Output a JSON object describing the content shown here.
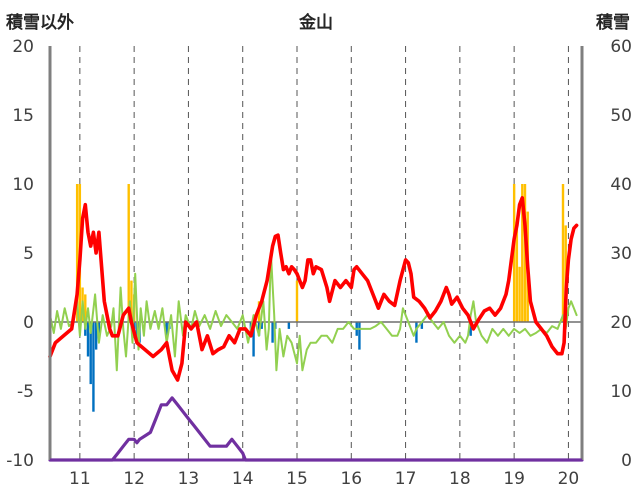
{
  "chart_data": {
    "type": "bar+line",
    "title": "金山",
    "left_axis_label": "積雪以外",
    "right_axis_label": "積雪",
    "x_ticks": [
      "11",
      "12",
      "13",
      "14",
      "15",
      "16",
      "17",
      "18",
      "19",
      "20"
    ],
    "x_tick_positions": [
      11,
      12,
      13,
      14,
      15,
      16,
      17,
      18,
      19,
      20
    ],
    "xlim": [
      10.45,
      20.25
    ],
    "left_ylim": [
      -10,
      20
    ],
    "left_yticks": [
      20,
      15,
      10,
      5,
      0,
      -5,
      -10
    ],
    "right_ylim": [
      0,
      60
    ],
    "right_yticks": [
      60,
      50,
      40,
      30,
      20,
      10,
      0
    ],
    "grid": "vertical dashed at ticks",
    "colors": {
      "red": "#ff0000",
      "green": "#92d050",
      "purple": "#7030a0",
      "orange": "#ffc000",
      "blue": "#0070c0"
    },
    "series": [
      {
        "name": "",
        "kind": "line",
        "color": "#ff0000",
        "axis": "left",
        "points": [
          [
            10.45,
            -2.5
          ],
          [
            10.55,
            -1.5
          ],
          [
            10.7,
            -1.0
          ],
          [
            10.85,
            -0.5
          ],
          [
            10.95,
            2.0
          ],
          [
            11.0,
            4.5
          ],
          [
            11.05,
            7.5
          ],
          [
            11.1,
            8.5
          ],
          [
            11.15,
            6.5
          ],
          [
            11.2,
            5.5
          ],
          [
            11.25,
            6.5
          ],
          [
            11.3,
            5.0
          ],
          [
            11.35,
            6.5
          ],
          [
            11.4,
            4.0
          ],
          [
            11.45,
            1.5
          ],
          [
            11.5,
            0.5
          ],
          [
            11.55,
            -0.5
          ],
          [
            11.6,
            -1.0
          ],
          [
            11.7,
            -1.0
          ],
          [
            11.8,
            0.5
          ],
          [
            11.9,
            1.0
          ],
          [
            11.95,
            0.0
          ],
          [
            12.05,
            -1.5
          ],
          [
            12.2,
            -2.0
          ],
          [
            12.35,
            -2.5
          ],
          [
            12.5,
            -2.0
          ],
          [
            12.6,
            -1.5
          ],
          [
            12.7,
            -3.5
          ],
          [
            12.8,
            -4.2
          ],
          [
            12.88,
            -3.0
          ],
          [
            12.95,
            0.0
          ],
          [
            13.05,
            -0.5
          ],
          [
            13.15,
            0.0
          ],
          [
            13.25,
            -2.0
          ],
          [
            13.35,
            -1.0
          ],
          [
            13.45,
            -2.3
          ],
          [
            13.55,
            -2.0
          ],
          [
            13.65,
            -1.8
          ],
          [
            13.75,
            -1.0
          ],
          [
            13.85,
            -1.5
          ],
          [
            13.95,
            -0.5
          ],
          [
            14.05,
            -0.5
          ],
          [
            14.15,
            -1.0
          ],
          [
            14.25,
            0.5
          ],
          [
            14.35,
            1.5
          ],
          [
            14.45,
            3.0
          ],
          [
            14.55,
            5.5
          ],
          [
            14.6,
            6.2
          ],
          [
            14.65,
            6.3
          ],
          [
            14.7,
            5.0
          ],
          [
            14.75,
            3.8
          ],
          [
            14.8,
            4.0
          ],
          [
            14.85,
            3.5
          ],
          [
            14.9,
            4.0
          ],
          [
            14.95,
            3.8
          ],
          [
            15.0,
            3.5
          ],
          [
            15.1,
            2.5
          ],
          [
            15.15,
            3.0
          ],
          [
            15.2,
            4.5
          ],
          [
            15.25,
            4.5
          ],
          [
            15.3,
            3.5
          ],
          [
            15.35,
            4.0
          ],
          [
            15.45,
            3.8
          ],
          [
            15.55,
            2.5
          ],
          [
            15.6,
            1.5
          ],
          [
            15.7,
            3.0
          ],
          [
            15.8,
            2.5
          ],
          [
            15.9,
            3.0
          ],
          [
            16.0,
            2.5
          ],
          [
            16.05,
            3.8
          ],
          [
            16.1,
            4.0
          ],
          [
            16.2,
            3.5
          ],
          [
            16.3,
            3.0
          ],
          [
            16.4,
            2.0
          ],
          [
            16.5,
            1.0
          ],
          [
            16.6,
            2.0
          ],
          [
            16.7,
            1.5
          ],
          [
            16.8,
            1.2
          ],
          [
            16.9,
            3.0
          ],
          [
            17.0,
            4.5
          ],
          [
            17.05,
            4.3
          ],
          [
            17.1,
            3.5
          ],
          [
            17.15,
            1.8
          ],
          [
            17.25,
            1.5
          ],
          [
            17.35,
            1.0
          ],
          [
            17.45,
            0.3
          ],
          [
            17.55,
            0.8
          ],
          [
            17.65,
            1.5
          ],
          [
            17.75,
            2.5
          ],
          [
            17.8,
            2.0
          ],
          [
            17.85,
            1.3
          ],
          [
            17.95,
            1.8
          ],
          [
            18.05,
            1.0
          ],
          [
            18.15,
            0.5
          ],
          [
            18.25,
            -0.5
          ],
          [
            18.35,
            0.2
          ],
          [
            18.45,
            0.8
          ],
          [
            18.55,
            1.0
          ],
          [
            18.65,
            0.5
          ],
          [
            18.75,
            1.0
          ],
          [
            18.85,
            2.0
          ],
          [
            18.9,
            3.0
          ],
          [
            18.95,
            4.5
          ],
          [
            19.0,
            6.0
          ],
          [
            19.05,
            7.0
          ],
          [
            19.1,
            8.5
          ],
          [
            19.15,
            9.0
          ],
          [
            19.2,
            7.0
          ],
          [
            19.25,
            4.0
          ],
          [
            19.3,
            1.5
          ],
          [
            19.4,
            0.0
          ],
          [
            19.5,
            -0.5
          ],
          [
            19.6,
            -1.0
          ],
          [
            19.7,
            -1.8
          ],
          [
            19.8,
            -2.3
          ],
          [
            19.88,
            -2.3
          ],
          [
            19.92,
            -1.5
          ],
          [
            19.96,
            2.5
          ],
          [
            20.0,
            4.5
          ],
          [
            20.05,
            6.0
          ],
          [
            20.1,
            6.8
          ],
          [
            20.15,
            7.0
          ]
        ]
      },
      {
        "name": "",
        "kind": "line",
        "color": "#92d050",
        "axis": "left",
        "points": [
          [
            10.45,
            0.5
          ],
          [
            10.52,
            -0.8
          ],
          [
            10.58,
            0.8
          ],
          [
            10.65,
            -0.5
          ],
          [
            10.72,
            1.0
          ],
          [
            10.8,
            -0.3
          ],
          [
            10.88,
            0.0
          ],
          [
            10.95,
            1.5
          ],
          [
            11.0,
            -1.0
          ],
          [
            11.05,
            1.5
          ],
          [
            11.1,
            -0.5
          ],
          [
            11.15,
            1.0
          ],
          [
            11.2,
            -0.8
          ],
          [
            11.28,
            2.0
          ],
          [
            11.35,
            -1.5
          ],
          [
            11.42,
            0.5
          ],
          [
            11.5,
            -1.0
          ],
          [
            11.58,
            -0.3
          ],
          [
            11.62,
            1.0
          ],
          [
            11.68,
            -3.5
          ],
          [
            11.75,
            2.5
          ],
          [
            11.8,
            -0.5
          ],
          [
            11.85,
            -2.5
          ],
          [
            11.92,
            1.5
          ],
          [
            11.97,
            -1.5
          ],
          [
            12.02,
            3.5
          ],
          [
            12.08,
            -2.0
          ],
          [
            12.12,
            1.0
          ],
          [
            12.18,
            -1.0
          ],
          [
            12.23,
            1.5
          ],
          [
            12.3,
            -0.5
          ],
          [
            12.38,
            0.8
          ],
          [
            12.45,
            -0.5
          ],
          [
            12.52,
            1.0
          ],
          [
            12.6,
            -1.5
          ],
          [
            12.68,
            0.5
          ],
          [
            12.75,
            -2.5
          ],
          [
            12.82,
            1.5
          ],
          [
            12.9,
            -1.0
          ],
          [
            12.95,
            0.5
          ],
          [
            13.05,
            -0.5
          ],
          [
            13.12,
            0.8
          ],
          [
            13.2,
            -0.3
          ],
          [
            13.3,
            0.5
          ],
          [
            13.4,
            -0.5
          ],
          [
            13.5,
            0.8
          ],
          [
            13.6,
            -0.3
          ],
          [
            13.7,
            0.5
          ],
          [
            13.8,
            0.0
          ],
          [
            13.9,
            -0.5
          ],
          [
            14.0,
            0.5
          ],
          [
            14.1,
            -1.5
          ],
          [
            14.2,
            0.5
          ],
          [
            14.3,
            -1.0
          ],
          [
            14.38,
            1.5
          ],
          [
            14.44,
            -2.0
          ],
          [
            14.48,
            -0.5
          ],
          [
            14.52,
            5.0
          ],
          [
            14.58,
            0.5
          ],
          [
            14.62,
            -3.5
          ],
          [
            14.68,
            -0.5
          ],
          [
            14.75,
            -2.5
          ],
          [
            14.82,
            -1.0
          ],
          [
            14.9,
            -1.5
          ],
          [
            15.0,
            -3.0
          ],
          [
            15.05,
            -1.0
          ],
          [
            15.1,
            -3.5
          ],
          [
            15.18,
            -2.0
          ],
          [
            15.25,
            -1.5
          ],
          [
            15.35,
            -1.5
          ],
          [
            15.45,
            -1.0
          ],
          [
            15.55,
            -1.0
          ],
          [
            15.65,
            -1.5
          ],
          [
            15.75,
            -0.5
          ],
          [
            15.85,
            -0.5
          ],
          [
            15.95,
            0.0
          ],
          [
            16.05,
            -0.5
          ],
          [
            16.15,
            -0.5
          ],
          [
            16.25,
            -0.5
          ],
          [
            16.35,
            -0.5
          ],
          [
            16.45,
            -0.3
          ],
          [
            16.55,
            0.0
          ],
          [
            16.65,
            -0.5
          ],
          [
            16.75,
            -1.0
          ],
          [
            16.85,
            -1.0
          ],
          [
            16.9,
            -0.5
          ],
          [
            16.95,
            1.0
          ],
          [
            17.0,
            0.5
          ],
          [
            17.05,
            0.0
          ],
          [
            17.1,
            -0.5
          ],
          [
            17.15,
            -1.0
          ],
          [
            17.2,
            -0.5
          ],
          [
            17.3,
            0.0
          ],
          [
            17.4,
            0.5
          ],
          [
            17.5,
            0.0
          ],
          [
            17.6,
            -0.5
          ],
          [
            17.7,
            0.0
          ],
          [
            17.8,
            -1.0
          ],
          [
            17.9,
            -1.5
          ],
          [
            18.0,
            -1.0
          ],
          [
            18.1,
            -1.5
          ],
          [
            18.15,
            -1.0
          ],
          [
            18.2,
            0.5
          ],
          [
            18.25,
            1.5
          ],
          [
            18.3,
            0.0
          ],
          [
            18.4,
            -1.0
          ],
          [
            18.5,
            -1.5
          ],
          [
            18.6,
            -0.5
          ],
          [
            18.7,
            -1.0
          ],
          [
            18.8,
            -0.5
          ],
          [
            18.9,
            -1.0
          ],
          [
            19.0,
            -0.5
          ],
          [
            19.1,
            -0.8
          ],
          [
            19.2,
            -0.5
          ],
          [
            19.3,
            -1.0
          ],
          [
            19.4,
            -0.8
          ],
          [
            19.5,
            -0.5
          ],
          [
            19.6,
            -0.8
          ],
          [
            19.7,
            -0.3
          ],
          [
            19.8,
            -0.5
          ],
          [
            19.9,
            0.5
          ],
          [
            19.95,
            -0.5
          ],
          [
            20.0,
            1.0
          ],
          [
            20.05,
            1.5
          ],
          [
            20.1,
            1.0
          ],
          [
            20.15,
            0.5
          ]
        ]
      },
      {
        "name": "",
        "kind": "line",
        "color": "#7030a0",
        "axis": "right",
        "points": [
          [
            10.45,
            0
          ],
          [
            11.6,
            0
          ],
          [
            11.7,
            1
          ],
          [
            11.8,
            2
          ],
          [
            11.9,
            3
          ],
          [
            12.0,
            3
          ],
          [
            12.05,
            2.5
          ],
          [
            12.1,
            3
          ],
          [
            12.2,
            3.5
          ],
          [
            12.3,
            4
          ],
          [
            12.4,
            6
          ],
          [
            12.5,
            8
          ],
          [
            12.6,
            8
          ],
          [
            12.7,
            9
          ],
          [
            12.8,
            8
          ],
          [
            12.9,
            7
          ],
          [
            13.0,
            6
          ],
          [
            13.1,
            5
          ],
          [
            13.2,
            4
          ],
          [
            13.3,
            3
          ],
          [
            13.4,
            2
          ],
          [
            13.6,
            2
          ],
          [
            13.7,
            2
          ],
          [
            13.8,
            3
          ],
          [
            13.9,
            2
          ],
          [
            14.0,
            1
          ],
          [
            14.05,
            0
          ],
          [
            20.25,
            0
          ]
        ]
      }
    ],
    "bars": [
      {
        "name": "",
        "color": "#ffc000",
        "axis": "left",
        "x": [
          10.95,
          11.0,
          11.05,
          11.1,
          11.9,
          11.95,
          12.0,
          14.3,
          15.0,
          19.0,
          19.05,
          19.1,
          19.15,
          19.2,
          19.25,
          19.9,
          19.95
        ],
        "values": [
          10,
          10,
          2.5,
          2,
          10,
          3,
          2,
          1.5,
          3,
          10,
          7,
          4,
          10,
          10,
          8,
          10,
          7
        ]
      },
      {
        "name": "",
        "color": "#0070c0",
        "axis": "left",
        "x": [
          11.1,
          11.15,
          11.2,
          11.25,
          11.3,
          11.35,
          12.0,
          12.05,
          12.1,
          12.6,
          12.65,
          14.15,
          14.2,
          14.3,
          14.35,
          14.55,
          14.6,
          14.85,
          16.1,
          16.15,
          17.2,
          17.3,
          18.2
        ],
        "values": [
          -1,
          -2.5,
          -4.5,
          -6.5,
          -2,
          -1,
          -0.5,
          -1,
          -1.5,
          -1,
          -0.5,
          -0.5,
          -2.5,
          -1,
          -0.5,
          -1.5,
          -0.5,
          -0.5,
          -1,
          -2,
          -1.5,
          -0.5,
          -1
        ]
      }
    ]
  }
}
